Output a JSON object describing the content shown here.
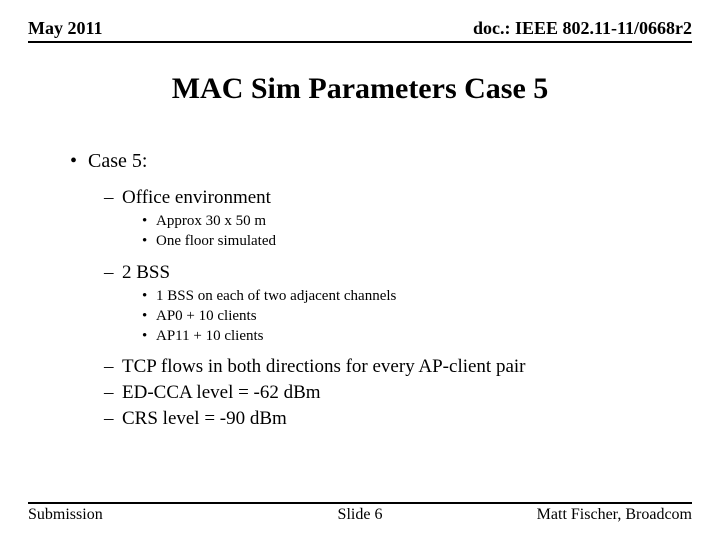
{
  "header": {
    "left": "May 2011",
    "right": "doc.: IEEE 802.11-11/0668r2"
  },
  "title": "MAC Sim Parameters Case 5",
  "content": {
    "l1": "Case 5:",
    "items": [
      {
        "l2": "Office environment",
        "l3": [
          "Approx 30 x 50 m",
          "One floor simulated"
        ]
      },
      {
        "l2": "2 BSS",
        "l3": [
          "1 BSS on each of two adjacent channels",
          "AP0 + 10 clients",
          "AP11 + 10 clients"
        ]
      },
      {
        "l2": "TCP flows in both directions for every AP-client pair",
        "l3": []
      },
      {
        "l2": "ED-CCA level = -62 dBm",
        "l3": []
      },
      {
        "l2": "CRS level = -90 dBm",
        "l3": []
      }
    ]
  },
  "footer": {
    "left": "Submission",
    "center": "Slide 6",
    "right": "Matt Fischer, Broadcom"
  }
}
